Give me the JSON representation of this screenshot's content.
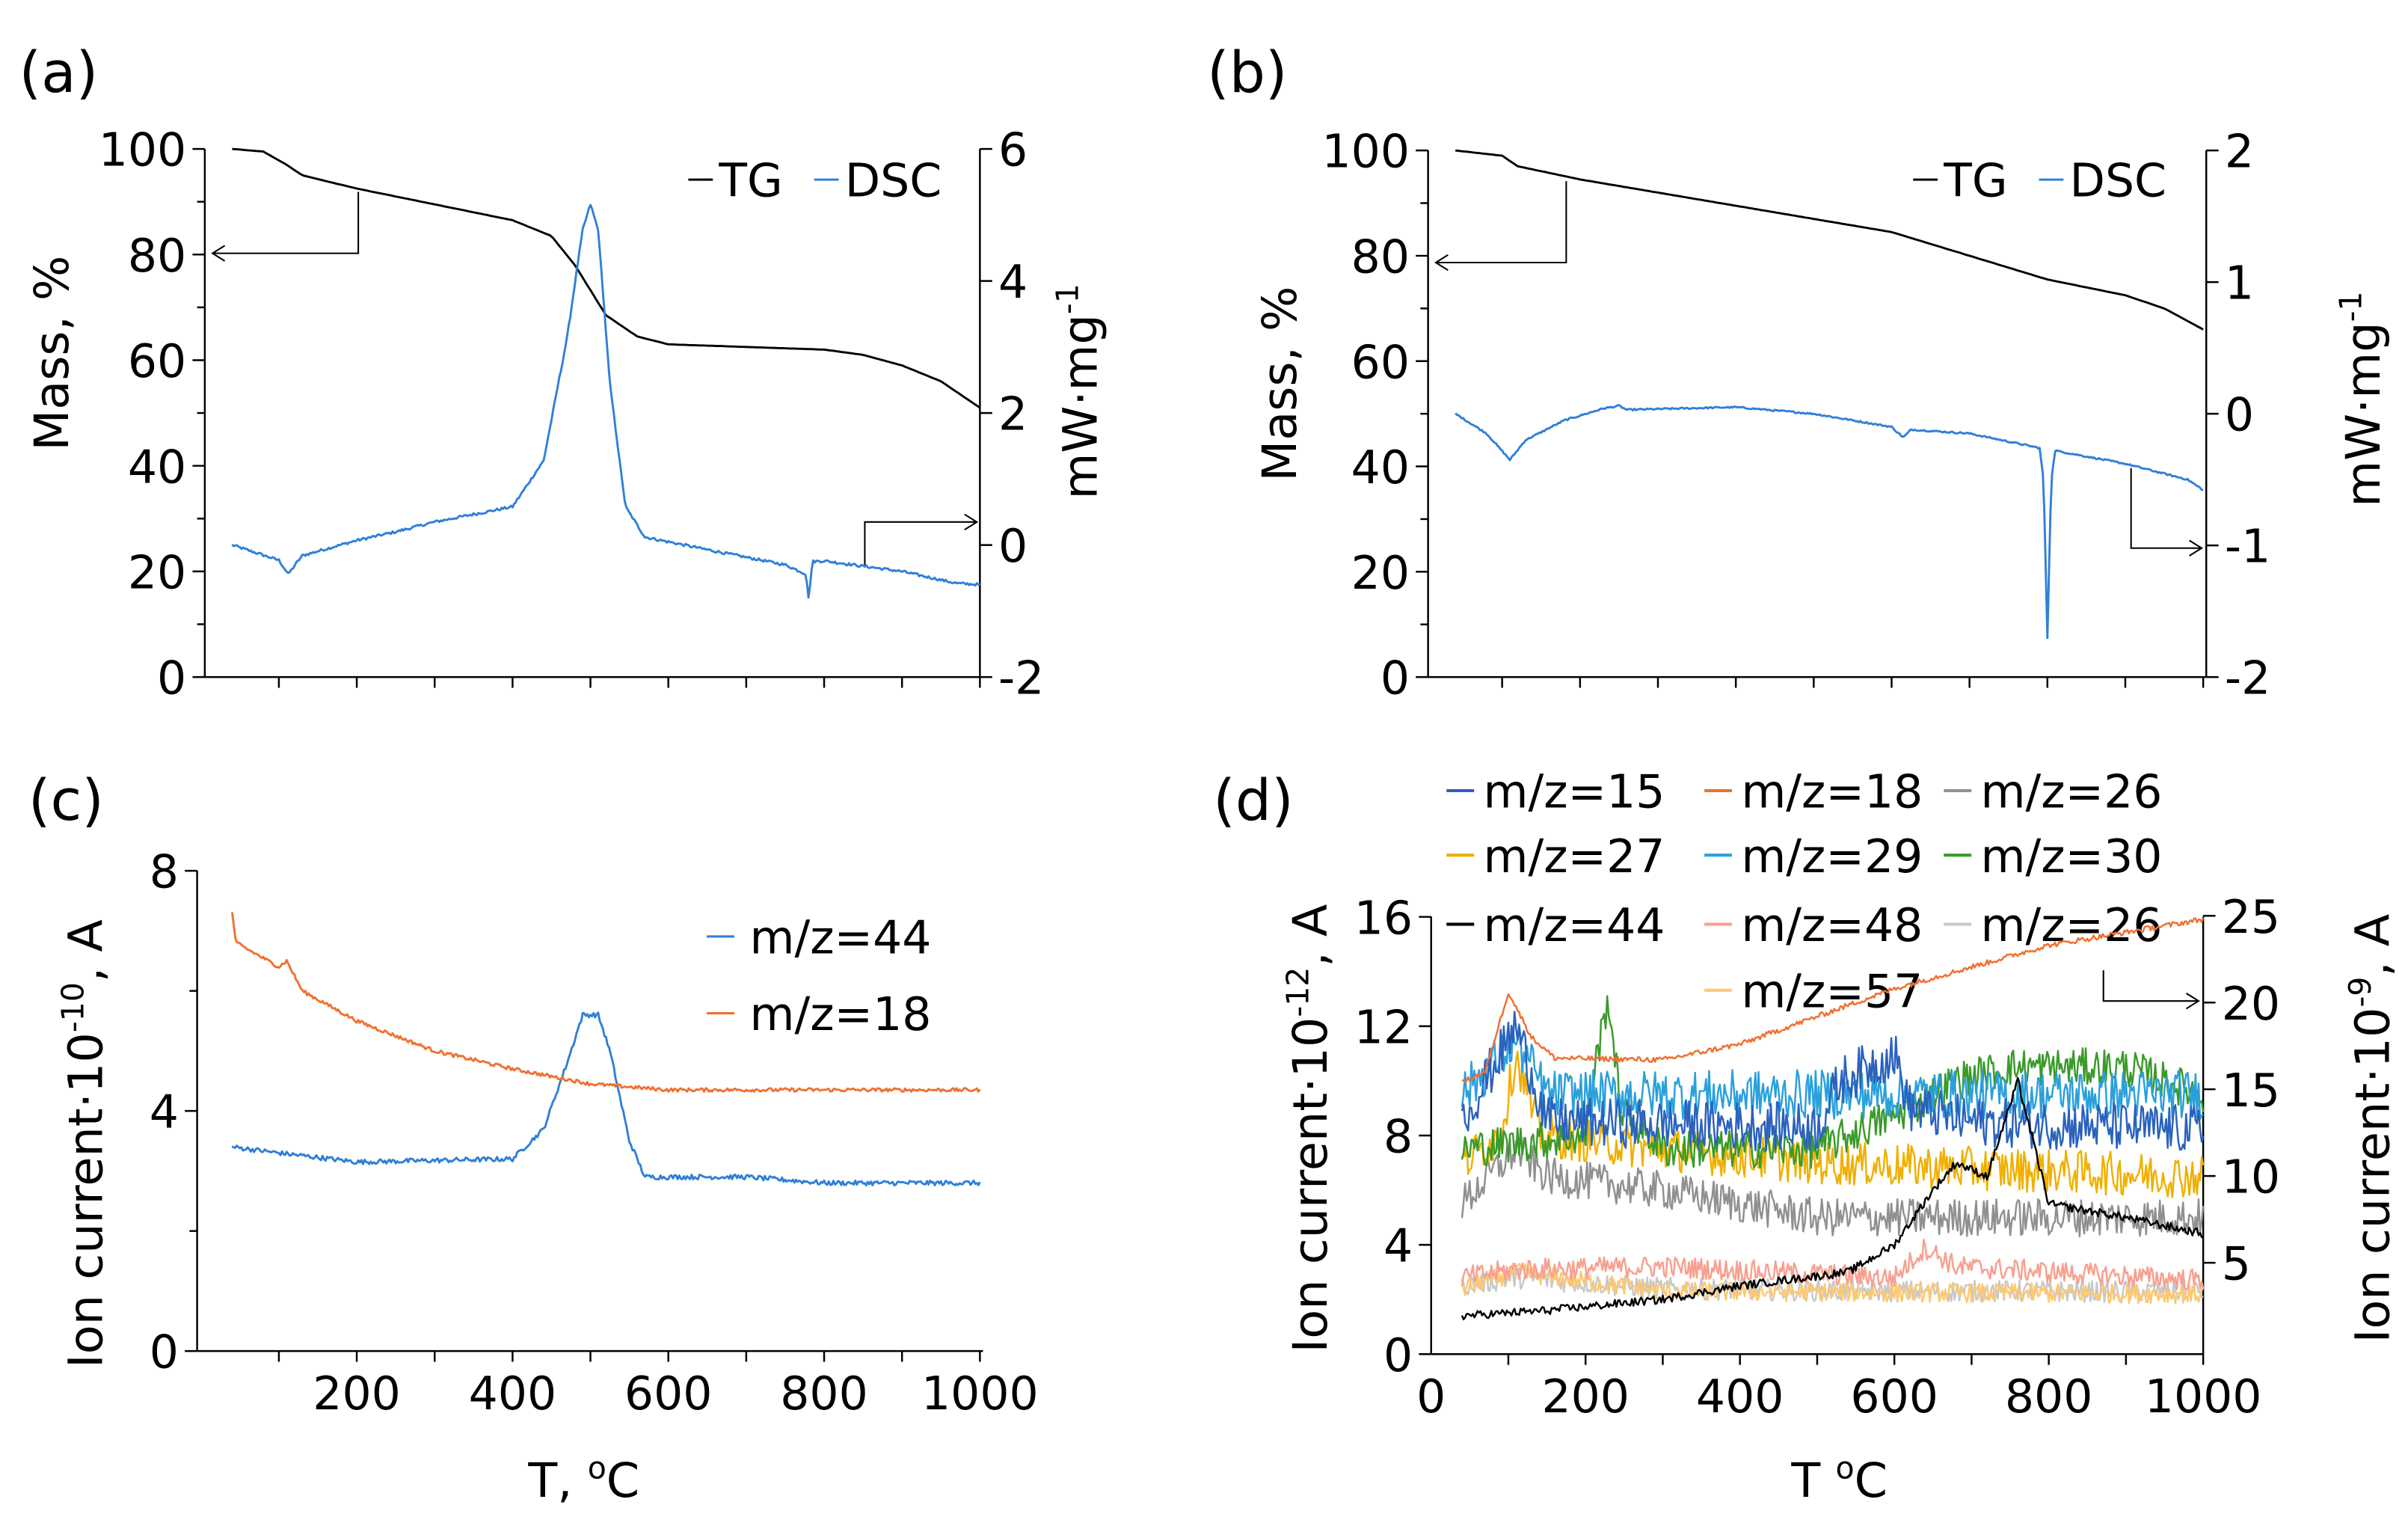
{
  "chart_data": [
    {
      "id": "a",
      "panel_label": "(a)",
      "type": "line",
      "ylabel": "Mass, %",
      "ylabel_right": "mW·mg",
      "ylabel_right_sup": "-1",
      "xlabel": "",
      "xlim": [
        0,
        1000
      ],
      "ylim": [
        0,
        100
      ],
      "yticks": [
        0,
        20,
        40,
        60,
        80,
        100
      ],
      "ylim_right": [
        -2,
        6
      ],
      "yticks_right": [
        -2,
        0,
        2,
        4,
        6
      ],
      "legend": {
        "placement": "top-right",
        "entries": [
          "TG",
          "DSC"
        ]
      },
      "series": [
        {
          "name": "TG",
          "axis": "left",
          "color": "#000000",
          "noise": 0,
          "points": [
            [
              40,
              100
            ],
            [
              80,
              99.5
            ],
            [
              110,
              97
            ],
            [
              130,
              95
            ],
            [
              200,
              92.5
            ],
            [
              300,
              89.5
            ],
            [
              400,
              86.5
            ],
            [
              450,
              83.5
            ],
            [
              480,
              78
            ],
            [
              520,
              68.5
            ],
            [
              560,
              64.5
            ],
            [
              600,
              63
            ],
            [
              700,
              62.5
            ],
            [
              800,
              62
            ],
            [
              850,
              61
            ],
            [
              900,
              59
            ],
            [
              950,
              56
            ],
            [
              1000,
              51
            ]
          ]
        },
        {
          "name": "DSC",
          "axis": "right",
          "color": "#2f7fd8",
          "noise": 0.02,
          "points": [
            [
              40,
              0
            ],
            [
              100,
              -0.23
            ],
            [
              112,
              -0.44
            ],
            [
              130,
              -0.16
            ],
            [
              200,
              0.07
            ],
            [
              250,
              0.2
            ],
            [
              300,
              0.35
            ],
            [
              400,
              0.58
            ],
            [
              440,
              1.28
            ],
            [
              470,
              3.14
            ],
            [
              490,
              4.77
            ],
            [
              500,
              5.16
            ],
            [
              510,
              4.77
            ],
            [
              525,
              2.44
            ],
            [
              545,
              0.58
            ],
            [
              570,
              0.12
            ],
            [
              650,
              -0.07
            ],
            [
              750,
              -0.3
            ],
            [
              777,
              -0.44
            ],
            [
              780,
              -0.81
            ],
            [
              785,
              -0.25
            ],
            [
              800,
              -0.24
            ],
            [
              900,
              -0.4
            ],
            [
              970,
              -0.58
            ],
            [
              1000,
              -0.6
            ]
          ]
        }
      ]
    },
    {
      "id": "b",
      "panel_label": "(b)",
      "type": "line",
      "ylabel": "Mass, %",
      "ylabel_right": "mW·mg",
      "ylabel_right_sup": "-1",
      "xlabel": "",
      "xlim": [
        0,
        1000
      ],
      "ylim": [
        0,
        100
      ],
      "yticks": [
        0,
        20,
        40,
        60,
        80,
        100
      ],
      "ylim_right": [
        -2,
        2
      ],
      "yticks_right": [
        -2,
        -1,
        0,
        1,
        2
      ],
      "legend": {
        "placement": "top-right",
        "entries": [
          "TG",
          "DSC"
        ]
      },
      "series": [
        {
          "name": "TG",
          "axis": "left",
          "color": "#000000",
          "noise": 0,
          "points": [
            [
              40,
              100
            ],
            [
              100,
              99
            ],
            [
              120,
              97
            ],
            [
              200,
              94.5
            ],
            [
              400,
              89.5
            ],
            [
              500,
              87
            ],
            [
              600,
              84.5
            ],
            [
              700,
              80
            ],
            [
              800,
              75.5
            ],
            [
              900,
              72.5
            ],
            [
              950,
              70
            ],
            [
              1000,
              66
            ]
          ]
        },
        {
          "name": "DSC",
          "axis": "right",
          "color": "#2f7fd8",
          "noise": 0.006,
          "points": [
            [
              40,
              0
            ],
            [
              80,
              -0.15
            ],
            [
              110,
              -0.35
            ],
            [
              130,
              -0.2
            ],
            [
              180,
              -0.05
            ],
            [
              230,
              0.04
            ],
            [
              250,
              0.06
            ],
            [
              260,
              0.03
            ],
            [
              400,
              0.05
            ],
            [
              500,
              0
            ],
            [
              600,
              -0.1
            ],
            [
              615,
              -0.18
            ],
            [
              625,
              -0.12
            ],
            [
              700,
              -0.15
            ],
            [
              790,
              -0.26
            ],
            [
              795,
              -0.5
            ],
            [
              800,
              -1.7
            ],
            [
              805,
              -0.5
            ],
            [
              810,
              -0.28
            ],
            [
              900,
              -0.38
            ],
            [
              980,
              -0.5
            ],
            [
              1000,
              -0.58
            ]
          ]
        }
      ]
    },
    {
      "id": "c",
      "panel_label": "(c)",
      "type": "line",
      "ylabel": "Ion current·10",
      "ylabel_sup": "-10",
      "ylabel_suffix": ", A",
      "xlabel": "T, ",
      "xlabel_sup": "o",
      "xlabel_suffix": "C",
      "xlim": [
        0,
        1000
      ],
      "xticks": [
        200,
        400,
        600,
        800,
        1000
      ],
      "ylim": [
        0,
        8
      ],
      "yticks": [
        0,
        4,
        8
      ],
      "legend": {
        "placement": "top-right",
        "entries": [
          "m/z=44",
          "m/z=18"
        ]
      },
      "series": [
        {
          "name": "m/z=44",
          "axis": "left",
          "color": "#2f7fd8",
          "noise": 0.04,
          "points": [
            [
              40,
              3.4
            ],
            [
              100,
              3.3
            ],
            [
              200,
              3.15
            ],
            [
              400,
              3.2
            ],
            [
              440,
              3.7
            ],
            [
              470,
              4.8
            ],
            [
              490,
              5.6
            ],
            [
              510,
              5.6
            ],
            [
              525,
              5
            ],
            [
              550,
              3.5
            ],
            [
              570,
              2.9
            ],
            [
              700,
              2.9
            ],
            [
              800,
              2.8
            ],
            [
              1000,
              2.8
            ]
          ]
        },
        {
          "name": "m/z=18",
          "axis": "left",
          "color": "#f07030",
          "noise": 0.03,
          "points": [
            [
              40,
              7.3
            ],
            [
              45,
              6.8
            ],
            [
              100,
              6.4
            ],
            [
              110,
              6.5
            ],
            [
              130,
              6.0
            ],
            [
              200,
              5.5
            ],
            [
              300,
              5.0
            ],
            [
              400,
              4.7
            ],
            [
              500,
              4.45
            ],
            [
              600,
              4.35
            ],
            [
              1000,
              4.35
            ]
          ]
        }
      ]
    },
    {
      "id": "d",
      "panel_label": "(d)",
      "type": "line",
      "ylabel": "Ion current·10",
      "ylabel_sup": "-12",
      "ylabel_suffix": ", A",
      "ylabel_right": "Ion current·10",
      "ylabel_right_sup": "-9",
      "ylabel_right_suffix": ", A",
      "xlabel": "T ",
      "xlabel_sup": "o",
      "xlabel_suffix": "C",
      "xlim": [
        0,
        1000
      ],
      "xticks": [
        0,
        200,
        400,
        600,
        800,
        1000
      ],
      "ylim": [
        0,
        16
      ],
      "yticks": [
        0,
        4,
        8,
        12,
        16
      ],
      "ylim_right": [
        0,
        25
      ],
      "yticks_right": [
        5,
        10,
        15,
        20,
        25
      ],
      "legend": {
        "placement": "top",
        "entries": [
          "m/z=15",
          "m/z=18",
          "m/z=26",
          "m/z=27",
          "m/z=29",
          "m/z=30",
          "m/z=44",
          "m/z=48",
          "m/z=26",
          "m/z=57"
        ]
      },
      "series": [
        {
          "name": "m/z=26",
          "axis": "left",
          "color": "#c8c8c8",
          "noise": 0.4,
          "points": [
            [
              40,
              2.5
            ],
            [
              110,
              2.8
            ],
            [
              300,
              2.4
            ],
            [
              600,
              2.3
            ],
            [
              1000,
              2.3
            ]
          ]
        },
        {
          "name": "m/z=57",
          "axis": "left",
          "color": "#ffc870",
          "noise": 0.35,
          "points": [
            [
              40,
              2.4
            ],
            [
              110,
              3.0
            ],
            [
              300,
              2.3
            ],
            [
              1000,
              2.2
            ]
          ]
        },
        {
          "name": "m/z=48",
          "axis": "left",
          "color": "#f8a090",
          "noise": 0.4,
          "points": [
            [
              40,
              2.8
            ],
            [
              110,
              3.1
            ],
            [
              300,
              3.2
            ],
            [
              600,
              2.8
            ],
            [
              640,
              3.9
            ],
            [
              680,
              3.2
            ],
            [
              1000,
              2.7
            ]
          ]
        },
        {
          "name": "m/z=26",
          "axis": "left",
          "color": "#909090",
          "noise": 0.7,
          "points": [
            [
              40,
              5.5
            ],
            [
              110,
              7.5
            ],
            [
              150,
              6.5
            ],
            [
              300,
              6
            ],
            [
              500,
              5
            ],
            [
              1000,
              5
            ]
          ]
        },
        {
          "name": "m/z=27",
          "axis": "left",
          "color": "#f0b000",
          "noise": 0.8,
          "points": [
            [
              40,
              7
            ],
            [
              90,
              8
            ],
            [
              110,
              11
            ],
            [
              140,
              8
            ],
            [
              300,
              7.5
            ],
            [
              500,
              7
            ],
            [
              1000,
              6.5
            ]
          ]
        },
        {
          "name": "m/z=30",
          "axis": "left",
          "color": "#3a9a2a",
          "noise": 0.7,
          "points": [
            [
              40,
              7.5
            ],
            [
              200,
              8
            ],
            [
              215,
              11
            ],
            [
              230,
              13
            ],
            [
              245,
              9
            ],
            [
              300,
              7.5
            ],
            [
              500,
              7.5
            ],
            [
              620,
              9
            ],
            [
              680,
              10
            ],
            [
              750,
              10.5
            ],
            [
              900,
              10.5
            ],
            [
              1000,
              9.5
            ]
          ]
        },
        {
          "name": "m/z=29",
          "axis": "left",
          "color": "#2aa0dc",
          "noise": 0.9,
          "points": [
            [
              40,
              9.5
            ],
            [
              110,
              11.5
            ],
            [
              150,
              9.5
            ],
            [
              1000,
              9.5
            ]
          ]
        },
        {
          "name": "m/z=15",
          "axis": "left",
          "color": "#2a62bd",
          "noise": 0.9,
          "points": [
            [
              40,
              8.5
            ],
            [
              110,
              12
            ],
            [
              150,
              8.5
            ],
            [
              500,
              8.3
            ],
            [
              530,
              10
            ],
            [
              600,
              11
            ],
            [
              620,
              9
            ],
            [
              700,
              8.5
            ],
            [
              1000,
              8.2
            ]
          ]
        },
        {
          "name": "m/z=44",
          "axis": "left",
          "color": "#000000",
          "noise": 0.15,
          "points": [
            [
              40,
              1.4
            ],
            [
              150,
              1.6
            ],
            [
              300,
              2
            ],
            [
              400,
              2.5
            ],
            [
              540,
              3
            ],
            [
              600,
              4
            ],
            [
              650,
              6
            ],
            [
              680,
              7
            ],
            [
              720,
              6.5
            ],
            [
              760,
              10
            ],
            [
              800,
              5.5
            ],
            [
              900,
              5
            ],
            [
              1000,
              4.4
            ]
          ]
        },
        {
          "name": "m/z=18",
          "axis": "right",
          "color": "#f07030",
          "noise": 0.15,
          "points": [
            [
              40,
              15.4
            ],
            [
              70,
              16
            ],
            [
              100,
              20.6
            ],
            [
              130,
              18
            ],
            [
              160,
              16.8
            ],
            [
              300,
              16.7
            ],
            [
              400,
              17.6
            ],
            [
              600,
              20.8
            ],
            [
              800,
              23.3
            ],
            [
              1000,
              24.8
            ]
          ]
        }
      ]
    }
  ]
}
